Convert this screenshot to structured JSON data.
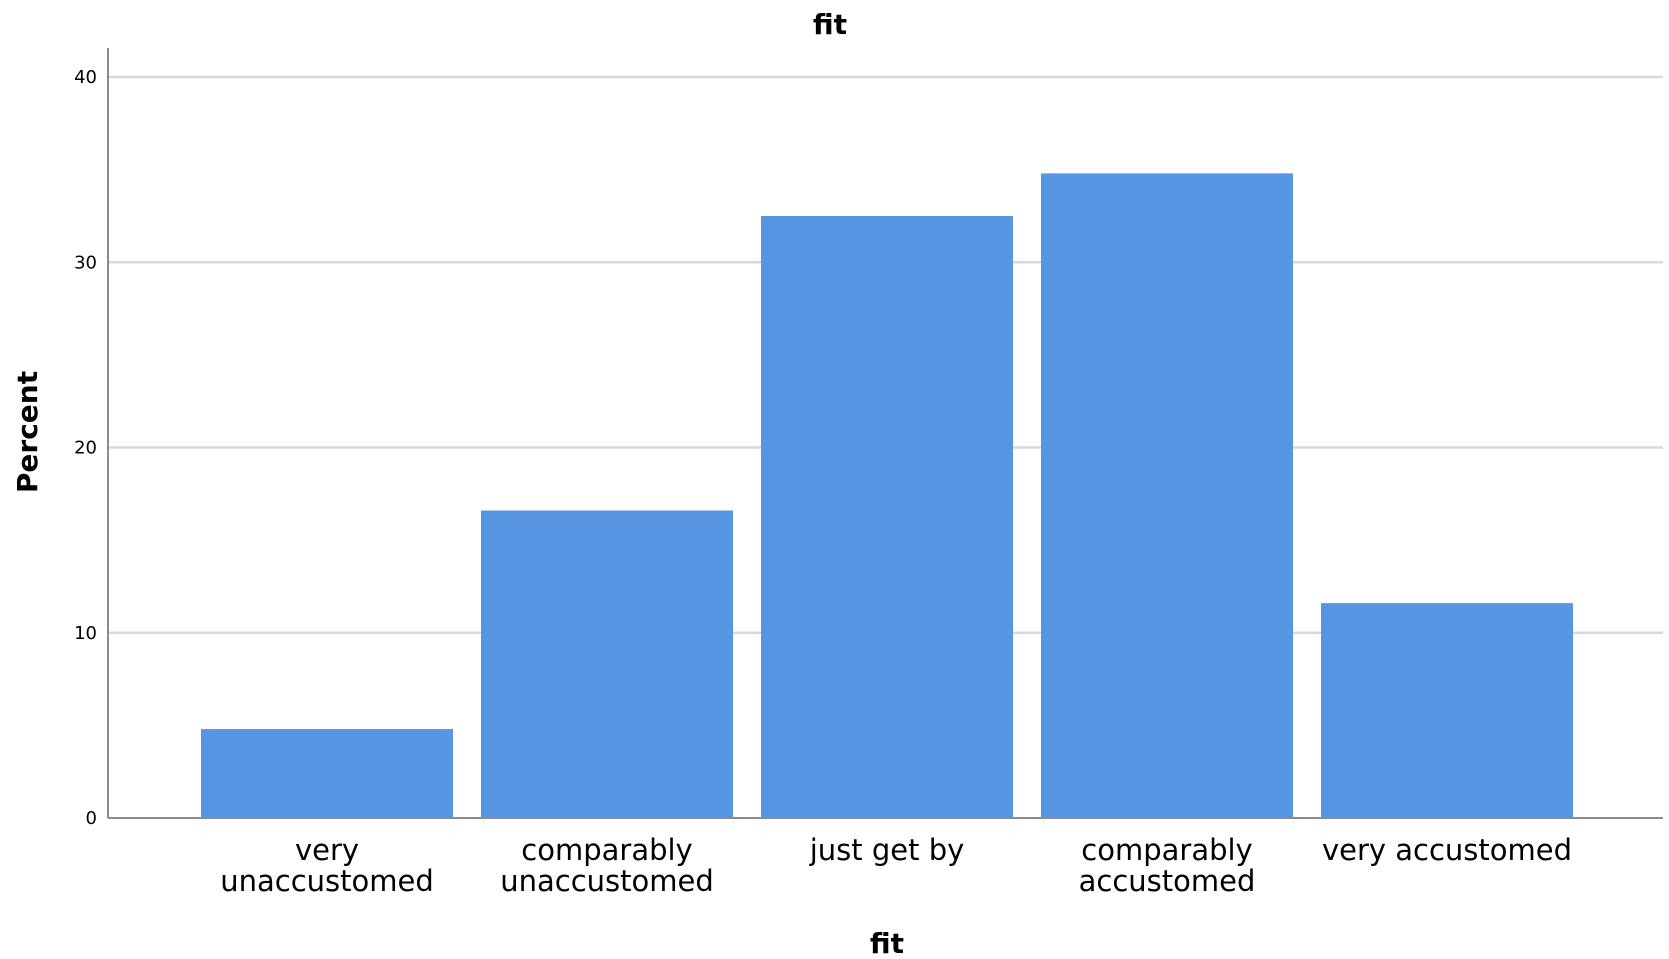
{
  "chart_data": {
    "type": "bar",
    "title": "fit",
    "xlabel": "fit",
    "ylabel": "Percent",
    "categories": [
      [
        "very",
        "unaccustomed"
      ],
      [
        "comparably",
        "unaccustomed"
      ],
      [
        "just get by"
      ],
      [
        "comparably",
        "accustomed"
      ],
      [
        "very accustomed"
      ]
    ],
    "values": [
      4.8,
      16.6,
      32.5,
      34.8,
      11.6
    ],
    "ylim": [
      0,
      42
    ],
    "yticks": [
      "0",
      "10",
      "20",
      "30",
      "40"
    ],
    "grid": true,
    "legend": "none",
    "bar_color": "#5796E3",
    "grid_color": "#D9D9D9",
    "axis_color": "#8C8C8C"
  }
}
